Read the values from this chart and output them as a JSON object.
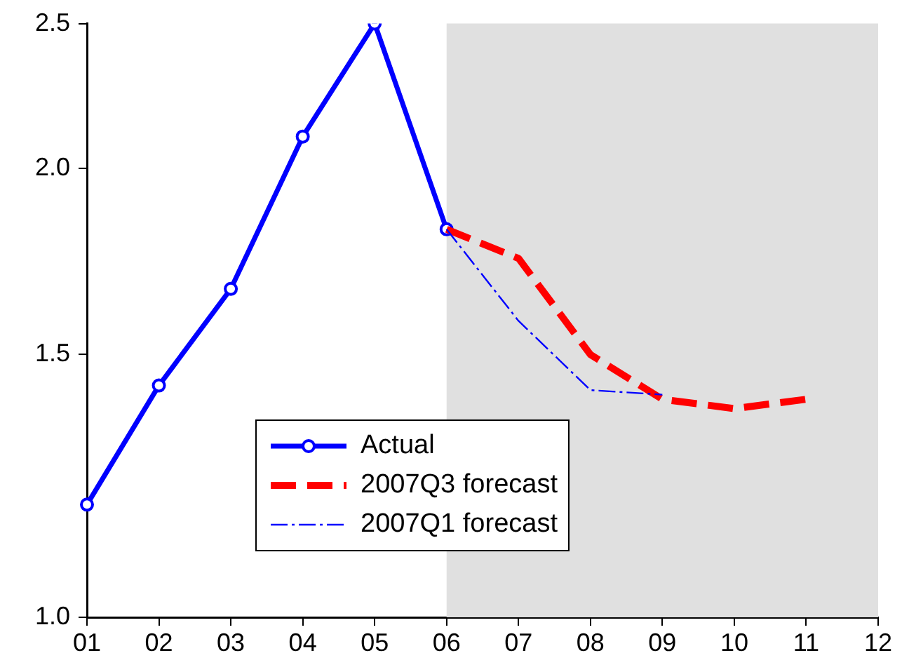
{
  "chart_data": {
    "type": "line",
    "categories": [
      "01",
      "02",
      "03",
      "04",
      "05",
      "06",
      "07",
      "08",
      "09",
      "10",
      "11",
      "12"
    ],
    "series": [
      {
        "name": "Actual",
        "color": "#0000ff",
        "marker": "circle",
        "line_style": "solid",
        "values": [
          1.19,
          1.43,
          1.66,
          2.1,
          2.5,
          1.82,
          null,
          null,
          null,
          null,
          null,
          null
        ]
      },
      {
        "name": "2007Q3 forecast",
        "color": "#ff0000",
        "marker": "none",
        "line_style": "dashed",
        "values": [
          null,
          null,
          null,
          null,
          null,
          1.82,
          1.74,
          1.5,
          1.4,
          1.38,
          1.4,
          null
        ]
      },
      {
        "name": "2007Q1 forecast",
        "color": "#0000ff",
        "marker": "none",
        "line_style": "dashed",
        "values": [
          null,
          null,
          null,
          null,
          null,
          1.82,
          1.58,
          1.42,
          1.41,
          null,
          null,
          null
        ]
      }
    ],
    "log": "y",
    "ylim": [
      1.0,
      2.5
    ],
    "yticks": [
      {
        "value": 1.0,
        "label": "1.0"
      },
      {
        "value": 1.5,
        "label": "1.5"
      },
      {
        "value": 2.0,
        "label": "2.0"
      },
      {
        "value": 2.5,
        "label": "2.5"
      }
    ],
    "bands": [
      {
        "axis": "x",
        "from": "06",
        "to": "12",
        "color": "#e0e0e0"
      }
    ],
    "grid": false,
    "legend": "bottom"
  }
}
